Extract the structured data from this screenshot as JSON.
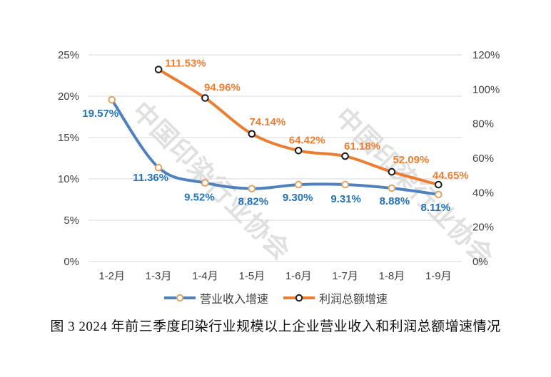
{
  "watermark": {
    "text": "中国印染行业协会",
    "color": "#d9d9d9"
  },
  "caption": "图 3 2024 年前三季度印染行业规模以上企业营业收入和利润总额增速情况",
  "chart_data": {
    "type": "line",
    "title": "",
    "categories": [
      "1-2月",
      "1-3月",
      "1-4月",
      "1-5月",
      "1-6月",
      "1-7月",
      "1-8月",
      "1-9月"
    ],
    "series": [
      {
        "name": "营业收入增速",
        "axis": "left",
        "values": [
          19.57,
          11.36,
          9.52,
          8.82,
          9.3,
          9.31,
          8.88,
          8.11
        ],
        "labels": [
          "19.57%",
          "11.36%",
          "9.52%",
          "8.82%",
          "9.30%",
          "9.31%",
          "8.88%",
          "8.11%"
        ],
        "color": "#4e81bd",
        "marker_stroke": "#e0a265",
        "label_color": "#2273b8",
        "label_dx": [
          -16,
          -11,
          -8,
          2,
          -1,
          1,
          4,
          -4
        ],
        "label_dy": [
          24,
          19,
          25,
          23,
          23,
          25,
          23,
          23
        ],
        "label_anchor": [
          "middle",
          "middle",
          "middle",
          "middle",
          "middle",
          "middle",
          "middle",
          "middle"
        ]
      },
      {
        "name": "利润总额增速",
        "axis": "right",
        "values": [
          null,
          111.53,
          94.96,
          74.14,
          64.42,
          61.18,
          52.09,
          44.65
        ],
        "labels": [
          null,
          "111.53%",
          "94.96%",
          "74.14%",
          "64.42%",
          "61.18%",
          "52.09%",
          "44.65%"
        ],
        "color": "#ed7d31",
        "marker_stroke": "#1a1a1a",
        "label_color": "#ed7d31",
        "label_dx": [
          0,
          9,
          24,
          22,
          12,
          24,
          27,
          17
        ],
        "label_dy": [
          0,
          -4,
          -10,
          -12,
          -10,
          -9,
          -12,
          -8
        ],
        "label_anchor": [
          null,
          "start",
          "middle",
          "middle",
          "middle",
          "middle",
          "middle",
          "middle"
        ]
      }
    ],
    "left_axis": {
      "min": 0,
      "max": 25,
      "tick_labels": [
        "0%",
        "5%",
        "10%",
        "15%",
        "20%",
        "25%"
      ]
    },
    "right_axis": {
      "min": 0,
      "max": 120,
      "tick_labels": [
        "0%",
        "20%",
        "40%",
        "60%",
        "80%",
        "100%",
        "120%"
      ]
    },
    "grid": true,
    "legend_position": "bottom",
    "gridline_color": "#d9d9d9",
    "axis_text_color": "#404040"
  }
}
